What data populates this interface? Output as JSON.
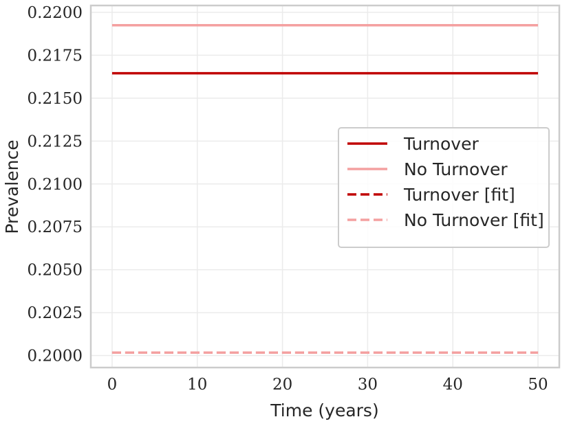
{
  "chart_data": {
    "type": "line",
    "xlabel": "Time (years)",
    "ylabel": "Prevalence",
    "xlim": [
      -2.5,
      52.5
    ],
    "ylim": [
      0.1993,
      0.2204
    ],
    "xticks": [
      0,
      10,
      20,
      30,
      40,
      50
    ],
    "xtick_labels": [
      "0",
      "10",
      "20",
      "30",
      "40",
      "50"
    ],
    "yticks": [
      0.2,
      0.2025,
      0.205,
      0.2075,
      0.21,
      0.2125,
      0.215,
      0.2175,
      0.22
    ],
    "ytick_labels": [
      "0.2000",
      "0.2025",
      "0.2050",
      "0.2075",
      "0.2100",
      "0.2125",
      "0.2150",
      "0.2175",
      "0.2200"
    ],
    "grid": true,
    "legend_position": "center-right",
    "series": [
      {
        "name": "Turnover",
        "color": "#c00000",
        "style": "solid",
        "x": [
          0,
          50
        ],
        "y": [
          0.21645,
          0.21645
        ]
      },
      {
        "name": "No Turnover",
        "color": "#f4a0a0",
        "style": "solid",
        "x": [
          0,
          50
        ],
        "y": [
          0.21925,
          0.21925
        ]
      },
      {
        "name": "Turnover [fit]",
        "color": "#c00000",
        "style": "dashed",
        "x": [
          0,
          50
        ],
        "y": [
          0.20017,
          0.20017
        ]
      },
      {
        "name": "No Turnover [fit]",
        "color": "#f4a0a0",
        "style": "dashed",
        "x": [
          0,
          50
        ],
        "y": [
          0.20017,
          0.20017
        ]
      }
    ]
  }
}
